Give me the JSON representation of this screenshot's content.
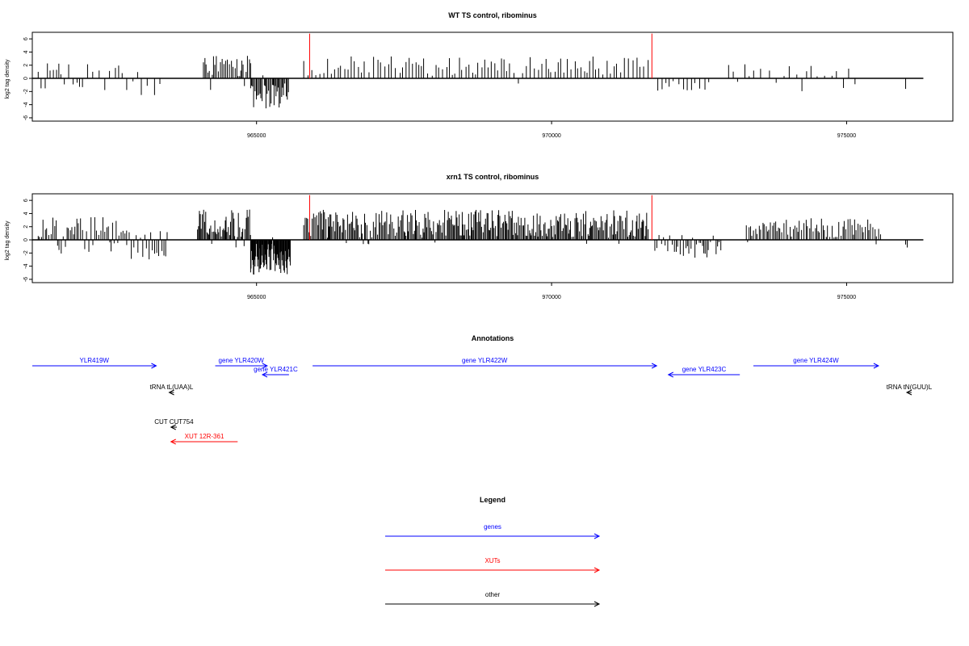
{
  "colors": {
    "gene": "#0000ff",
    "xut": "#ff0000",
    "other": "#000000",
    "marker": "#ff0000",
    "axis": "#000000"
  },
  "chart_data": [
    {
      "type": "bar",
      "title": "WT TS control, ribominus",
      "ylabel": "log2 tag density",
      "xlim": [
        961200,
        976800
      ],
      "ylim": [
        -6.5,
        7
      ],
      "yticks": [
        -6,
        -4,
        -2,
        0,
        2,
        4,
        6
      ],
      "xticks": [
        965000,
        970000,
        975000
      ],
      "baseline": [
        961200,
        976300
      ],
      "markers": [
        965900,
        971700
      ],
      "regions": [
        {
          "start": 961300,
          "end": 962000,
          "step": 55,
          "top": 2.8,
          "bottom": 0,
          "mix": 0.15,
          "negDepth": 2.0,
          "seed": 11
        },
        {
          "start": 962000,
          "end": 962800,
          "step": 80,
          "top": 3.2,
          "bottom": 0,
          "mix": 0.25,
          "negDepth": 3.0,
          "seed": 12
        },
        {
          "start": 962800,
          "end": 963400,
          "step": 90,
          "top": 1.5,
          "bottom": 0,
          "mix": 0.6,
          "negDepth": 3.5,
          "seed": 13
        },
        {
          "start": 964100,
          "end": 964900,
          "step": 28,
          "top": 4.2,
          "bottom": 0,
          "mix": 0.1,
          "negDepth": 2.0,
          "seed": 14
        },
        {
          "start": 964900,
          "end": 965550,
          "step": 18,
          "top": 0.5,
          "bottom": -5.0,
          "mix": 0.9,
          "negDepth": 5.0,
          "seed": 15
        },
        {
          "start": 965800,
          "end": 971650,
          "step": 60,
          "top": 3.5,
          "bottom": 0,
          "mix": 0.02,
          "negDepth": 1.0,
          "seed": 16
        },
        {
          "start": 971800,
          "end": 972700,
          "step": 75,
          "top": 0.8,
          "bottom": 0,
          "mix": 0.7,
          "negDepth": 2.2,
          "seed": 17
        },
        {
          "start": 973000,
          "end": 974500,
          "step": 110,
          "top": 2.2,
          "bottom": 0,
          "mix": 0.15,
          "negDepth": 2.0,
          "seed": 18
        },
        {
          "start": 974500,
          "end": 975200,
          "step": 100,
          "top": 2.2,
          "bottom": 0,
          "mix": 0.2,
          "negDepth": 1.5,
          "seed": 19
        },
        {
          "start": 976000,
          "end": 976030,
          "step": 30,
          "top": 0,
          "bottom": -3.2,
          "mix": 1.0,
          "negDepth": 3.2,
          "seed": 20
        }
      ]
    },
    {
      "type": "bar",
      "title": "xrn1 TS control, ribominus",
      "ylabel": "log2 tag density",
      "xlim": [
        961200,
        976800
      ],
      "ylim": [
        -6.5,
        7
      ],
      "yticks": [
        -6,
        -4,
        -2,
        0,
        2,
        4,
        6
      ],
      "xticks": [
        965000,
        970000,
        975000
      ],
      "baseline": [
        961200,
        976300
      ],
      "markers": [
        965900,
        971700
      ],
      "regions": [
        {
          "start": 961300,
          "end": 962800,
          "step": 30,
          "top": 3.5,
          "bottom": 0,
          "mix": 0.2,
          "negDepth": 2.2,
          "seed": 31
        },
        {
          "start": 962800,
          "end": 963500,
          "step": 35,
          "top": 1.5,
          "bottom": 0,
          "mix": 0.7,
          "negDepth": 3.0,
          "seed": 32
        },
        {
          "start": 964000,
          "end": 964900,
          "step": 18,
          "top": 5.0,
          "bottom": 0,
          "mix": 0.1,
          "negDepth": 2.0,
          "seed": 33
        },
        {
          "start": 964900,
          "end": 965580,
          "step": 10,
          "top": 0.4,
          "bottom": -5.3,
          "mix": 0.95,
          "negDepth": 5.3,
          "seed": 34
        },
        {
          "start": 965800,
          "end": 971650,
          "step": 20,
          "top": 4.6,
          "bottom": 0,
          "mix": 0.02,
          "negDepth": 1.0,
          "seed": 35
        },
        {
          "start": 971750,
          "end": 972900,
          "step": 35,
          "top": 1.0,
          "bottom": 0,
          "mix": 0.75,
          "negDepth": 2.8,
          "seed": 36
        },
        {
          "start": 973300,
          "end": 975600,
          "step": 30,
          "top": 3.3,
          "bottom": 0,
          "mix": 0.05,
          "negDepth": 1.5,
          "seed": 37
        },
        {
          "start": 975500,
          "end": 975530,
          "step": 30,
          "top": 0,
          "bottom": -2.7,
          "mix": 1.0,
          "negDepth": 2.7,
          "seed": 38
        },
        {
          "start": 976000,
          "end": 976030,
          "step": 30,
          "top": 0,
          "bottom": -2.4,
          "mix": 1.0,
          "negDepth": 2.4,
          "seed": 39
        }
      ]
    }
  ],
  "annotations": {
    "title": "Annotations",
    "xlim": [
      961200,
      976800
    ],
    "features": [
      {
        "label": "YLR419W",
        "kind": "gene",
        "start": 961200,
        "end": 963300,
        "strand": "+",
        "row": 0
      },
      {
        "label": "gene YLR420W",
        "kind": "gene",
        "start": 964300,
        "end": 965180,
        "strand": "+",
        "row": 0
      },
      {
        "label": "gene YLR421C",
        "kind": "gene",
        "start": 965100,
        "end": 965550,
        "strand": "-",
        "row": 1
      },
      {
        "label": "gene YLR422W",
        "kind": "gene",
        "start": 965950,
        "end": 971780,
        "strand": "+",
        "row": 0
      },
      {
        "label": "gene YLR423C",
        "kind": "gene",
        "start": 971980,
        "end": 973190,
        "strand": "-",
        "row": 1
      },
      {
        "label": "gene YLR424W",
        "kind": "gene",
        "start": 973420,
        "end": 975540,
        "strand": "+",
        "row": 0
      },
      {
        "label": "tRNA tL(UAA)L",
        "kind": "other",
        "start": 963520,
        "end": 963600,
        "strand": "-",
        "row": 2
      },
      {
        "label": "tRNA tN(GUU)L",
        "kind": "other",
        "start": 976020,
        "end": 976100,
        "strand": "-",
        "row": 2
      },
      {
        "label": "CUT CUT754",
        "kind": "other",
        "start": 963550,
        "end": 963650,
        "strand": "-",
        "row": 3
      },
      {
        "label": "XUT 12R-361",
        "kind": "xut",
        "start": 963550,
        "end": 964680,
        "strand": "-",
        "row": 4
      }
    ]
  },
  "legend": {
    "title": "Legend",
    "items": [
      {
        "label": "genes",
        "kind": "gene"
      },
      {
        "label": "XUTs",
        "kind": "xut"
      },
      {
        "label": "other",
        "kind": "other"
      }
    ]
  }
}
